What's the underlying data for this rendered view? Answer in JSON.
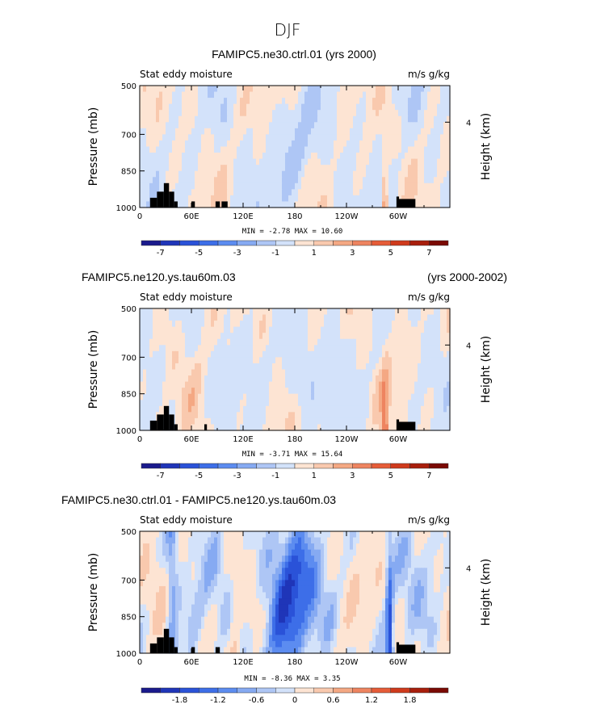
{
  "figure_title": "DJF",
  "colors": {
    "diverging": [
      "#1a1a8c",
      "#1f35b8",
      "#2a52d8",
      "#3d6ee8",
      "#5c8cf0",
      "#86aaf2",
      "#aec6f5",
      "#d3e2fa",
      "#fde4d3",
      "#f9c9ae",
      "#f4a883",
      "#ee8460",
      "#e65c38",
      "#cf3a1c",
      "#a81e0c",
      "#7a0a04"
    ]
  },
  "chart_data": [
    {
      "type": "heatmap",
      "title": "FAMIPC5.ne30.ctrl.01 (yrs 2000)",
      "left_label": "Stat eddy moisture",
      "right_label": "m/s g/kg",
      "ylabel": "Pressure (mb)",
      "ylabel_right": "Height (km)",
      "yticks": [
        "500",
        "700",
        "850",
        "1000"
      ],
      "ytick_values": [
        500,
        700,
        850,
        1000
      ],
      "yticks_right": [
        "4"
      ],
      "xticks": [
        "0",
        "60E",
        "120E",
        "180",
        "120W",
        "60W"
      ],
      "xtick_values": [
        0,
        60,
        120,
        180,
        240,
        300
      ],
      "xlim": [
        0,
        360
      ],
      "ylim": [
        1000,
        500
      ],
      "min_max_label": "MIN =   -2.78   MAX =   10.60",
      "colorbar_labels": [
        "-7",
        "-5",
        "-3",
        "-1",
        "1",
        "3",
        "5",
        "7"
      ],
      "pos_intensity": 0.5,
      "neg_intensity": 0.45
    },
    {
      "type": "heatmap",
      "title": "FAMIPC5.ne120.ys.tau60m.03",
      "title_right": "(yrs 2000-2002)",
      "left_label": "Stat eddy moisture",
      "right_label": "m/s g/kg",
      "ylabel": "Pressure (mb)",
      "ylabel_right": "Height (km)",
      "yticks": [
        "500",
        "700",
        "850",
        "1000"
      ],
      "ytick_values": [
        500,
        700,
        850,
        1000
      ],
      "yticks_right": [
        "4"
      ],
      "xticks": [
        "0",
        "60E",
        "120E",
        "180",
        "120W",
        "60W"
      ],
      "xtick_values": [
        0,
        60,
        120,
        180,
        240,
        300
      ],
      "xlim": [
        0,
        360
      ],
      "ylim": [
        1000,
        500
      ],
      "min_max_label": "MIN =   -3.71   MAX =   15.64",
      "colorbar_labels": [
        "-7",
        "-5",
        "-3",
        "-1",
        "1",
        "3",
        "5",
        "7"
      ],
      "pos_intensity": 0.6,
      "neg_intensity": 0.35
    },
    {
      "type": "heatmap",
      "title": "FAMIPC5.ne30.ctrl.01 - FAMIPC5.ne120.ys.tau60m.03",
      "left_label": "Stat eddy moisture",
      "right_label": "m/s g/kg",
      "ylabel": "Pressure (mb)",
      "ylabel_right": "Height (km)",
      "yticks": [
        "500",
        "700",
        "850",
        "1000"
      ],
      "ytick_values": [
        500,
        700,
        850,
        1000
      ],
      "yticks_right": [
        "4"
      ],
      "xticks": [
        "0",
        "60E",
        "120E",
        "180",
        "120W",
        "60W"
      ],
      "xtick_values": [
        0,
        60,
        120,
        180,
        240,
        300
      ],
      "xlim": [
        0,
        360
      ],
      "ylim": [
        1000,
        500
      ],
      "min_max_label": "MIN =   -8.36   MAX =    3.35",
      "colorbar_labels": [
        "-1.8",
        "-1.2",
        "-0.6",
        "0",
        "0.6",
        "1.2",
        "1.8"
      ],
      "pos_intensity": 0.55,
      "neg_intensity": 0.9
    }
  ]
}
